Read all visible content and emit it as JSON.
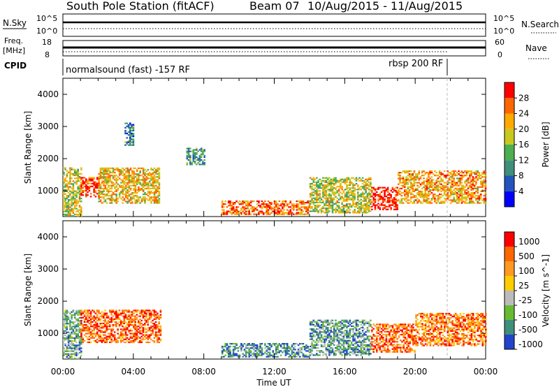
{
  "title": {
    "station": "South Pole Station (fitACF)",
    "beam": "Beam 07",
    "dates": "10/Aug/2015 - 11/Aug/2015"
  },
  "top_panels": {
    "nsky": {
      "label": "N.Sky",
      "left_ticks": [
        "10^5",
        "10^0"
      ],
      "right_ticks": [
        "10^5",
        "10^0"
      ],
      "right_label": "N.Search"
    },
    "freq": {
      "label_line1": "Freq.",
      "label_line2": "[MHz]",
      "left_ticks": [
        "18",
        "8"
      ],
      "right_ticks": [
        "60",
        "0"
      ],
      "right_label": "Nave"
    },
    "cpid": {
      "label": "CPID",
      "segments": [
        "normalsound (fast) -157 RF",
        "rbsp 200 RF"
      ]
    }
  },
  "chart_data": [
    {
      "type": "heatmap",
      "name": "power-panel",
      "ylabel": "Slant Range [km]",
      "xlabel": "",
      "xlim": [
        "00:00",
        "00:00"
      ],
      "x_ticks": [
        "00:00",
        "04:00",
        "08:00",
        "12:00",
        "16:00",
        "20:00",
        "00:00"
      ],
      "y_ticks": [
        1000,
        2000,
        3000,
        4000
      ],
      "ylim": [
        200,
        4500
      ],
      "colorbar": {
        "label": "Power [dB]",
        "ticks": [
          4,
          8,
          12,
          16,
          20,
          24,
          28
        ],
        "range": [
          0,
          32
        ],
        "colors": [
          "#0000ff",
          "#2255bb",
          "#3f8f7a",
          "#4caf50",
          "#c8c820",
          "#ffaa00",
          "#ff6600",
          "#ff0000"
        ]
      },
      "regions": [
        {
          "t": [
            0.0,
            1.0
          ],
          "range": [
            200,
            1700
          ],
          "level": 0.55
        },
        {
          "t": [
            1.0,
            2.0
          ],
          "range": [
            800,
            1400
          ],
          "level": 0.9
        },
        {
          "t": [
            2.0,
            5.5
          ],
          "range": [
            600,
            1700
          ],
          "level": 0.65
        },
        {
          "t": [
            3.5,
            4.0
          ],
          "range": [
            2400,
            3100
          ],
          "level": 0.3
        },
        {
          "t": [
            7.0,
            8.0
          ],
          "range": [
            1800,
            2300
          ],
          "level": 0.35
        },
        {
          "t": [
            9.0,
            14.0
          ],
          "range": [
            250,
            700
          ],
          "level": 0.8
        },
        {
          "t": [
            14.0,
            17.5
          ],
          "range": [
            300,
            1400
          ],
          "level": 0.55
        },
        {
          "t": [
            17.5,
            19.0
          ],
          "range": [
            400,
            1100
          ],
          "level": 0.95
        },
        {
          "t": [
            19.0,
            24.0
          ],
          "range": [
            600,
            1600
          ],
          "level": 0.7
        }
      ]
    },
    {
      "type": "heatmap",
      "name": "velocity-panel",
      "ylabel": "Slant Range [km]",
      "xlabel": "Time UT",
      "xlim": [
        "00:00",
        "00:00"
      ],
      "x_ticks": [
        "00:00",
        "04:00",
        "08:00",
        "12:00",
        "16:00",
        "20:00",
        "00:00"
      ],
      "y_ticks": [
        1000,
        2000,
        3000,
        4000
      ],
      "ylim": [
        200,
        4500
      ],
      "colorbar": {
        "label": "Velocity [m s^-1]",
        "ticks": [
          "1000",
          "500",
          "100",
          "25",
          "-25",
          "-100",
          "-500",
          "-1000"
        ],
        "colors": [
          "#2244cc",
          "#3f8f7a",
          "#66bb33",
          "#bbbbbb",
          "#ffcc00",
          "#ff9922",
          "#ff6600",
          "#ff0000"
        ]
      },
      "regions": [
        {
          "t": [
            0.0,
            1.0
          ],
          "range": [
            200,
            1700
          ],
          "level": 0.3
        },
        {
          "t": [
            1.0,
            5.5
          ],
          "range": [
            700,
            1700
          ],
          "level": 0.8
        },
        {
          "t": [
            9.0,
            14.0
          ],
          "range": [
            250,
            700
          ],
          "level": 0.2
        },
        {
          "t": [
            14.0,
            17.5
          ],
          "range": [
            300,
            1400
          ],
          "level": 0.25
        },
        {
          "t": [
            17.5,
            20.0
          ],
          "range": [
            400,
            1300
          ],
          "level": 0.8
        },
        {
          "t": [
            20.0,
            24.0
          ],
          "range": [
            600,
            1600
          ],
          "level": 0.75
        }
      ]
    }
  ]
}
